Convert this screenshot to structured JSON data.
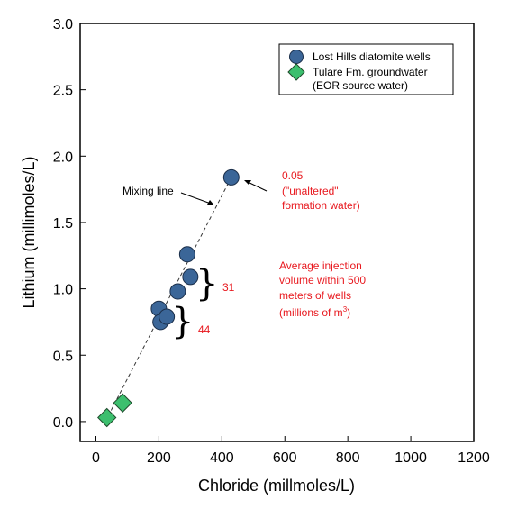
{
  "chart_data": {
    "type": "scatter",
    "title": "",
    "xlabel": "Chloride (millmoles/L)",
    "ylabel": "Lithium (millimoles/L)",
    "xlim": [
      -50,
      1200
    ],
    "ylim": [
      -0.15,
      3.0
    ],
    "xticks": [
      "0",
      "200",
      "400",
      "600",
      "800",
      "1000",
      "1200"
    ],
    "yticks": [
      "0.0",
      "0.5",
      "1.0",
      "1.5",
      "2.0",
      "2.5",
      "3.0"
    ],
    "grid": false,
    "legend_position": "top-right",
    "series": [
      {
        "name": "Lost Hills diatomite wells",
        "marker": "circle",
        "color": "#3b6698",
        "points": [
          {
            "x": 200,
            "y": 0.85
          },
          {
            "x": 205,
            "y": 0.75
          },
          {
            "x": 225,
            "y": 0.79
          },
          {
            "x": 260,
            "y": 0.98
          },
          {
            "x": 290,
            "y": 1.26
          },
          {
            "x": 300,
            "y": 1.09
          },
          {
            "x": 430,
            "y": 1.84
          }
        ]
      },
      {
        "name": "Tulare Fm. groundwater",
        "name_line2": "(EOR source water)",
        "marker": "diamond",
        "color": "#3cbf6e",
        "points": [
          {
            "x": 35,
            "y": 0.03
          },
          {
            "x": 85,
            "y": 0.14
          }
        ]
      }
    ],
    "mixing_line": {
      "label": "Mixing line",
      "from": {
        "x": 30,
        "y": 0.0
      },
      "to": {
        "x": 430,
        "y": 1.84
      }
    },
    "annotations": {
      "unaltered": [
        "0.05",
        "(\"unaltered\"",
        "formation water)"
      ],
      "injection_title": [
        "Average injection",
        "volume within 500",
        "meters of wells"
      ],
      "injection_unit": "(millions of m",
      "injection_unit_sup": "3",
      "injection_unit_close": ")",
      "group_upper": "31",
      "group_lower": "44"
    }
  }
}
